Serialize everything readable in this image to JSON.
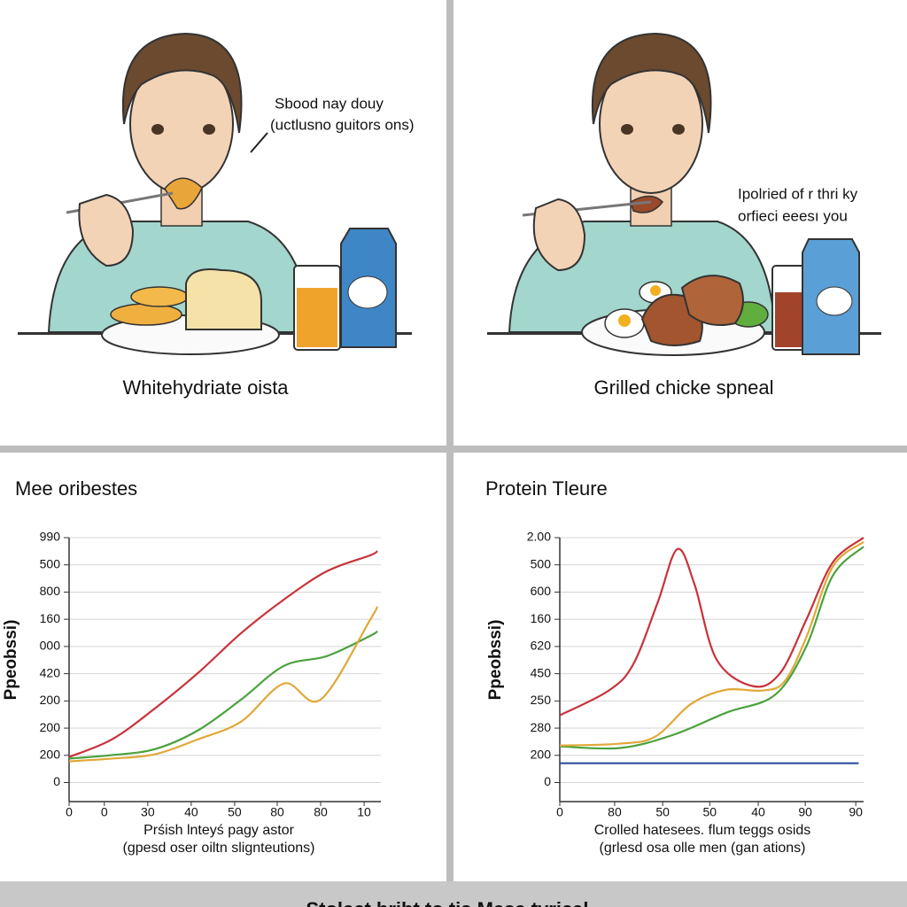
{
  "panels": [
    {
      "caption": "Whitehydriate oista",
      "note": [
        "Sbood nay douy",
        "(uctlusno guitors ons)"
      ]
    },
    {
      "caption": "Grilled chicke spneal",
      "note": [
        "Ipolried of r thri ky",
        "orfieci eeesı you"
      ]
    }
  ],
  "chart_data": [
    {
      "type": "line",
      "title": "Mee oribestes",
      "ylabel": "Ppeobssi)",
      "xlabel": [
        "Prśish lnteyś pagy astor",
        "(gpesd oser oiltn slignteutions)"
      ],
      "xlim": [
        0,
        7.25
      ],
      "ylim": [
        -0.7,
        9
      ],
      "xticks": [
        0,
        {
          "value": 0.82,
          "label": "0"
        },
        {
          "value": 1.83,
          "label": "30"
        },
        {
          "value": 2.84,
          "label": "40"
        },
        {
          "value": 3.85,
          "label": "50"
        },
        {
          "value": 4.84,
          "label": "80"
        },
        {
          "value": 5.85,
          "label": "80"
        },
        {
          "value": 6.86,
          "label": "10"
        }
      ],
      "yticks": [
        0,
        {
          "value": 1,
          "label": "200"
        },
        {
          "value": 2,
          "label": "200"
        },
        {
          "value": 3,
          "label": "200"
        },
        {
          "value": 4,
          "label": "420"
        },
        {
          "value": 5,
          "label": "000"
        },
        {
          "value": 6,
          "label": "160"
        },
        {
          "value": 7,
          "label": "800"
        },
        {
          "value": 8,
          "label": "500"
        },
        {
          "value": 9,
          "label": "990"
        }
      ],
      "grid": true,
      "series": [
        {
          "color": "#c8323a",
          "x": [
            0,
            1,
            2,
            3,
            4,
            5,
            6,
            7,
            7.17
          ],
          "values": [
            0.94,
            1.59,
            2.73,
            4.03,
            5.49,
            6.73,
            7.77,
            8.35,
            8.51
          ]
        },
        {
          "color": "#4aa23c",
          "x": [
            0,
            1,
            2,
            3,
            4,
            5,
            6,
            7,
            7.17
          ],
          "values": [
            0.88,
            1.01,
            1.23,
            1.92,
            3.05,
            4.29,
            4.65,
            5.39,
            5.56
          ]
        },
        {
          "color": "#e0a838",
          "x": [
            0,
            1,
            2,
            3,
            4,
            5,
            5.85,
            7,
            7.17
          ],
          "values": [
            0.78,
            0.88,
            1.04,
            1.59,
            2.24,
            3.64,
            3.05,
            5.98,
            6.47
          ]
        }
      ]
    },
    {
      "type": "line",
      "title": "Protein Tleure",
      "ylabel": "Ppeobssi)",
      "xlabel": [
        "Crolled hatesees. flum teggs osids",
        "(grlesd osa olle men (gan ations)"
      ],
      "xlim": [
        0,
        6.2
      ],
      "ylim": [
        -0.7,
        9
      ],
      "xticks": [
        0,
        {
          "value": 1.12,
          "label": "80"
        },
        {
          "value": 2.1,
          "label": "50"
        },
        {
          "value": 3.06,
          "label": "50"
        },
        {
          "value": 4.05,
          "label": "40"
        },
        {
          "value": 5.01,
          "label": "90"
        },
        {
          "value": 6.04,
          "label": "90"
        }
      ],
      "yticks": [
        0,
        {
          "value": 1,
          "label": "200"
        },
        {
          "value": 2,
          "label": "280"
        },
        {
          "value": 3,
          "label": "250"
        },
        {
          "value": 4,
          "label": "450"
        },
        {
          "value": 5,
          "label": "620"
        },
        {
          "value": 6,
          "label": "160"
        },
        {
          "value": 7,
          "label": "600"
        },
        {
          "value": 8,
          "label": "500"
        },
        {
          "value": 9,
          "label": "2.00"
        }
      ],
      "grid": true,
      "series": [
        {
          "color": "#c8323a",
          "x": [
            0,
            1,
            1.5,
            2,
            2.4,
            2.75,
            3.2,
            3.95,
            4.5,
            5.03,
            5.57,
            6.2
          ],
          "values": [
            2.47,
            3.38,
            4.35,
            6.63,
            8.58,
            7.28,
            4.52,
            3.54,
            4.03,
            5.98,
            8.09,
            9.0
          ]
        },
        {
          "color": "#4aa23c",
          "x": [
            0,
            1.23,
            2.31,
            3.4,
            4.39,
            5.03,
            5.57,
            6.2
          ],
          "values": [
            1.33,
            1.27,
            1.75,
            2.57,
            3.22,
            5.0,
            7.6,
            8.67
          ]
        },
        {
          "color": "#e0a838",
          "x": [
            0,
            1.23,
            1.95,
            2.68,
            3.4,
            4.12,
            4.58,
            5.03,
            5.57,
            6.2
          ],
          "values": [
            1.36,
            1.43,
            1.69,
            2.89,
            3.41,
            3.38,
            3.7,
            5.33,
            7.93,
            8.84
          ]
        },
        {
          "color": "#2e4f9e",
          "x": [
            0,
            6.1
          ],
          "values": [
            0.71,
            0.71
          ]
        }
      ]
    }
  ],
  "banner": "Stolect bribt to tis Mesa tyrical"
}
